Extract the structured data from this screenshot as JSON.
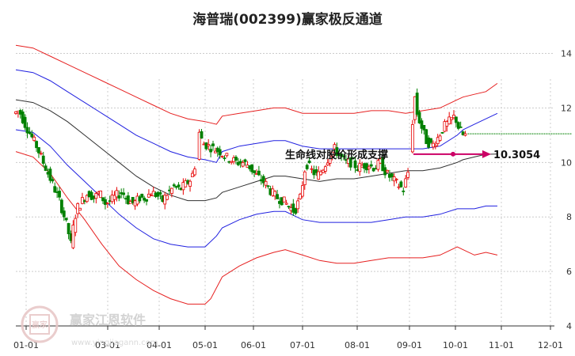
{
  "chart_data": {
    "type": "line",
    "title": "海普瑞(002399)赢家极反通道",
    "x_ticks": [
      "01-01",
      "03-01",
      "04-01",
      "05-01",
      "06-01",
      "07-01",
      "08-01",
      "09-01",
      "10-01",
      "11-01",
      "12-01"
    ],
    "y_ticks": [
      4,
      6,
      8,
      10,
      12,
      14
    ],
    "ylim": [
      4,
      14.8
    ],
    "annotation": {
      "text": "生命线对股价形成支撑",
      "value": "10.3054",
      "value_num": 10.3054
    },
    "watermark": {
      "text": "赢家江恩软件",
      "sub": "www.yingjiagann.com",
      "seal": "赢家"
    },
    "last_close": 11.05,
    "colors": {
      "upper": "#e62020",
      "channel": "#2020e0",
      "middle": "#303030",
      "up": "#e60000",
      "down": "#008000",
      "arrow": "#cc0066",
      "grid": "#cccccc",
      "last": "#008000"
    },
    "series": [
      {
        "key": "upper_outer",
        "color": "#e62020",
        "points": [
          [
            0,
            14.3
          ],
          [
            15,
            14.2
          ],
          [
            30,
            13.9
          ],
          [
            45,
            13.6
          ],
          [
            60,
            13.3
          ],
          [
            75,
            13.0
          ],
          [
            90,
            12.7
          ],
          [
            105,
            12.4
          ],
          [
            120,
            12.1
          ],
          [
            135,
            11.8
          ],
          [
            150,
            11.6
          ],
          [
            165,
            11.5
          ],
          [
            175,
            11.4
          ],
          [
            180,
            11.7
          ],
          [
            195,
            11.8
          ],
          [
            210,
            11.9
          ],
          [
            225,
            12.0
          ],
          [
            235,
            12.0
          ],
          [
            250,
            11.8
          ],
          [
            265,
            11.8
          ],
          [
            280,
            11.8
          ],
          [
            295,
            11.8
          ],
          [
            310,
            11.9
          ],
          [
            325,
            11.9
          ],
          [
            340,
            11.8
          ],
          [
            355,
            11.9
          ],
          [
            370,
            12.0
          ],
          [
            385,
            12.3
          ],
          [
            390,
            12.4
          ],
          [
            400,
            12.5
          ],
          [
            410,
            12.6
          ],
          [
            420,
            12.9
          ]
        ]
      },
      {
        "key": "upper_inner",
        "color": "#2020e0",
        "points": [
          [
            0,
            13.4
          ],
          [
            15,
            13.3
          ],
          [
            30,
            13.0
          ],
          [
            45,
            12.6
          ],
          [
            60,
            12.2
          ],
          [
            75,
            11.8
          ],
          [
            90,
            11.4
          ],
          [
            105,
            11.0
          ],
          [
            120,
            10.7
          ],
          [
            135,
            10.4
          ],
          [
            150,
            10.2
          ],
          [
            165,
            10.1
          ],
          [
            175,
            10.0
          ],
          [
            180,
            10.4
          ],
          [
            195,
            10.6
          ],
          [
            210,
            10.7
          ],
          [
            225,
            10.8
          ],
          [
            235,
            10.8
          ],
          [
            250,
            10.6
          ],
          [
            265,
            10.5
          ],
          [
            280,
            10.5
          ],
          [
            295,
            10.5
          ],
          [
            310,
            10.5
          ],
          [
            325,
            10.5
          ],
          [
            340,
            10.5
          ],
          [
            355,
            10.5
          ],
          [
            370,
            10.6
          ],
          [
            385,
            11.0
          ],
          [
            390,
            11.2
          ],
          [
            400,
            11.4
          ],
          [
            410,
            11.6
          ],
          [
            420,
            11.8
          ]
        ]
      },
      {
        "key": "middle",
        "color": "#303030",
        "points": [
          [
            0,
            12.3
          ],
          [
            15,
            12.2
          ],
          [
            30,
            11.9
          ],
          [
            45,
            11.5
          ],
          [
            60,
            11.0
          ],
          [
            75,
            10.5
          ],
          [
            90,
            10.0
          ],
          [
            105,
            9.5
          ],
          [
            120,
            9.1
          ],
          [
            135,
            8.8
          ],
          [
            150,
            8.6
          ],
          [
            165,
            8.6
          ],
          [
            175,
            8.7
          ],
          [
            180,
            8.9
          ],
          [
            195,
            9.1
          ],
          [
            210,
            9.3
          ],
          [
            225,
            9.5
          ],
          [
            235,
            9.5
          ],
          [
            250,
            9.4
          ],
          [
            265,
            9.3
          ],
          [
            280,
            9.4
          ],
          [
            295,
            9.4
          ],
          [
            310,
            9.5
          ],
          [
            325,
            9.6
          ],
          [
            340,
            9.7
          ],
          [
            355,
            9.7
          ],
          [
            370,
            9.8
          ],
          [
            385,
            10.0
          ],
          [
            390,
            10.1
          ],
          [
            400,
            10.2
          ],
          [
            410,
            10.3
          ],
          [
            420,
            10.3054
          ]
        ]
      },
      {
        "key": "lower_inner",
        "color": "#2020e0",
        "points": [
          [
            0,
            11.2
          ],
          [
            15,
            11.1
          ],
          [
            30,
            10.6
          ],
          [
            45,
            9.9
          ],
          [
            60,
            9.3
          ],
          [
            75,
            8.7
          ],
          [
            90,
            8.1
          ],
          [
            105,
            7.6
          ],
          [
            120,
            7.2
          ],
          [
            135,
            7.0
          ],
          [
            150,
            6.9
          ],
          [
            165,
            6.9
          ],
          [
            175,
            7.3
          ],
          [
            180,
            7.6
          ],
          [
            195,
            7.9
          ],
          [
            210,
            8.1
          ],
          [
            225,
            8.2
          ],
          [
            235,
            8.2
          ],
          [
            250,
            7.9
          ],
          [
            265,
            7.8
          ],
          [
            280,
            7.8
          ],
          [
            295,
            7.8
          ],
          [
            310,
            7.8
          ],
          [
            325,
            7.9
          ],
          [
            340,
            8.0
          ],
          [
            355,
            8.0
          ],
          [
            370,
            8.1
          ],
          [
            385,
            8.3
          ],
          [
            390,
            8.3
          ],
          [
            400,
            8.3
          ],
          [
            410,
            8.4
          ],
          [
            420,
            8.4
          ]
        ]
      },
      {
        "key": "lower_outer",
        "color": "#e62020",
        "points": [
          [
            0,
            10.4
          ],
          [
            15,
            10.2
          ],
          [
            30,
            9.6
          ],
          [
            45,
            8.7
          ],
          [
            60,
            7.9
          ],
          [
            75,
            7.0
          ],
          [
            90,
            6.2
          ],
          [
            105,
            5.7
          ],
          [
            120,
            5.3
          ],
          [
            135,
            5.0
          ],
          [
            150,
            4.8
          ],
          [
            165,
            4.8
          ],
          [
            170,
            5.0
          ],
          [
            180,
            5.8
          ],
          [
            195,
            6.2
          ],
          [
            210,
            6.5
          ],
          [
            225,
            6.7
          ],
          [
            235,
            6.8
          ],
          [
            250,
            6.6
          ],
          [
            265,
            6.4
          ],
          [
            280,
            6.3
          ],
          [
            295,
            6.3
          ],
          [
            310,
            6.4
          ],
          [
            325,
            6.5
          ],
          [
            340,
            6.5
          ],
          [
            355,
            6.5
          ],
          [
            370,
            6.6
          ],
          [
            385,
            6.9
          ],
          [
            390,
            6.8
          ],
          [
            400,
            6.6
          ],
          [
            410,
            6.7
          ],
          [
            420,
            6.6
          ]
        ]
      }
    ],
    "price_points": [
      [
        0,
        11.8
      ],
      [
        5,
        11.9
      ],
      [
        10,
        11.4
      ],
      [
        15,
        11.0
      ],
      [
        20,
        10.6
      ],
      [
        25,
        10.1
      ],
      [
        30,
        9.6
      ],
      [
        35,
        9.1
      ],
      [
        40,
        8.6
      ],
      [
        45,
        7.9
      ],
      [
        48,
        7.4
      ],
      [
        50,
        7.0
      ],
      [
        52,
        7.6
      ],
      [
        55,
        8.3
      ],
      [
        60,
        8.6
      ],
      [
        65,
        8.9
      ],
      [
        70,
        8.7
      ],
      [
        75,
        8.9
      ],
      [
        80,
        8.5
      ],
      [
        85,
        8.6
      ],
      [
        90,
        8.8
      ],
      [
        95,
        8.9
      ],
      [
        100,
        8.6
      ],
      [
        105,
        8.5
      ],
      [
        110,
        8.7
      ],
      [
        115,
        8.7
      ],
      [
        120,
        8.9
      ],
      [
        125,
        8.8
      ],
      [
        130,
        8.6
      ],
      [
        135,
        8.9
      ],
      [
        140,
        9.1
      ],
      [
        145,
        9.0
      ],
      [
        150,
        9.2
      ],
      [
        155,
        9.4
      ],
      [
        160,
        10.2
      ],
      [
        162,
        11.1
      ],
      [
        165,
        10.7
      ],
      [
        170,
        10.6
      ],
      [
        175,
        10.5
      ],
      [
        180,
        10.4
      ],
      [
        185,
        10.2
      ],
      [
        190,
        10.1
      ],
      [
        195,
        10.0
      ],
      [
        200,
        10.0
      ],
      [
        205,
        9.9
      ],
      [
        210,
        9.6
      ],
      [
        215,
        9.4
      ],
      [
        220,
        9.2
      ],
      [
        225,
        8.9
      ],
      [
        230,
        8.7
      ],
      [
        235,
        8.6
      ],
      [
        240,
        8.4
      ],
      [
        245,
        8.2
      ],
      [
        250,
        8.7
      ],
      [
        255,
        10.0
      ],
      [
        260,
        9.7
      ],
      [
        265,
        9.5
      ],
      [
        270,
        9.8
      ],
      [
        275,
        10.2
      ],
      [
        280,
        10.5
      ],
      [
        285,
        10.2
      ],
      [
        290,
        10.0
      ],
      [
        295,
        10.0
      ],
      [
        300,
        9.8
      ],
      [
        305,
        9.9
      ],
      [
        310,
        9.9
      ],
      [
        315,
        9.8
      ],
      [
        320,
        10.0
      ],
      [
        325,
        9.6
      ],
      [
        330,
        9.4
      ],
      [
        335,
        9.2
      ],
      [
        340,
        9.0
      ],
      [
        345,
        9.8
      ],
      [
        348,
        11.5
      ],
      [
        350,
        12.4
      ],
      [
        352,
        11.8
      ],
      [
        355,
        11.4
      ],
      [
        360,
        10.8
      ],
      [
        365,
        10.6
      ],
      [
        370,
        10.9
      ],
      [
        375,
        11.3
      ],
      [
        380,
        11.5
      ],
      [
        385,
        11.7
      ],
      [
        388,
        11.3
      ],
      [
        392,
        11.0
      ]
    ],
    "segment_breaks": [
      [
        157,
        159
      ],
      [
        252,
        254
      ],
      [
        342,
        346
      ]
    ]
  }
}
